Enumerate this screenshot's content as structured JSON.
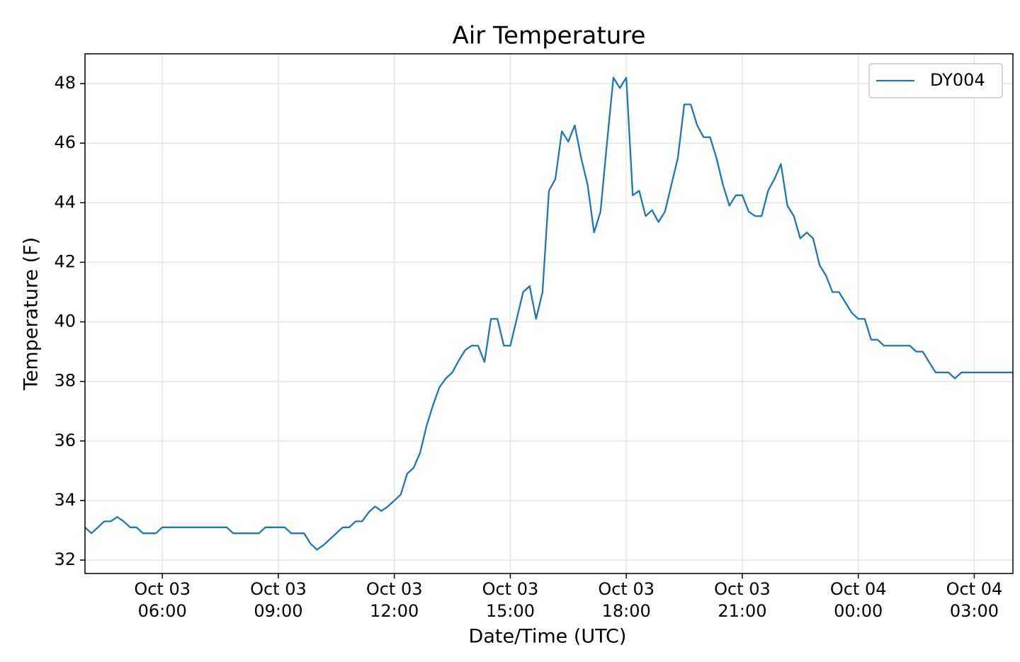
{
  "chart_data": {
    "type": "line",
    "title": "Air Temperature",
    "x_label": "Date/Time (UTC)",
    "y_label": "Temperature (F)",
    "x": [
      "Oct 03 04:00",
      "Oct 03 04:10",
      "Oct 03 04:20",
      "Oct 03 04:30",
      "Oct 03 04:40",
      "Oct 03 04:50",
      "Oct 03 05:00",
      "Oct 03 05:10",
      "Oct 03 05:20",
      "Oct 03 05:30",
      "Oct 03 05:40",
      "Oct 03 05:50",
      "Oct 03 06:00",
      "Oct 03 06:10",
      "Oct 03 06:20",
      "Oct 03 06:30",
      "Oct 03 06:40",
      "Oct 03 06:50",
      "Oct 03 07:00",
      "Oct 03 07:10",
      "Oct 03 07:20",
      "Oct 03 07:30",
      "Oct 03 07:40",
      "Oct 03 07:50",
      "Oct 03 08:00",
      "Oct 03 08:10",
      "Oct 03 08:20",
      "Oct 03 08:30",
      "Oct 03 08:40",
      "Oct 03 08:50",
      "Oct 03 09:00",
      "Oct 03 09:10",
      "Oct 03 09:20",
      "Oct 03 09:30",
      "Oct 03 09:40",
      "Oct 03 09:50",
      "Oct 03 10:00",
      "Oct 03 10:10",
      "Oct 03 10:20",
      "Oct 03 10:30",
      "Oct 03 10:40",
      "Oct 03 10:50",
      "Oct 03 11:00",
      "Oct 03 11:10",
      "Oct 03 11:20",
      "Oct 03 11:30",
      "Oct 03 11:40",
      "Oct 03 11:50",
      "Oct 03 12:00",
      "Oct 03 12:10",
      "Oct 03 12:20",
      "Oct 03 12:30",
      "Oct 03 12:40",
      "Oct 03 12:50",
      "Oct 03 13:00",
      "Oct 03 13:10",
      "Oct 03 13:20",
      "Oct 03 13:30",
      "Oct 03 13:40",
      "Oct 03 13:50",
      "Oct 03 14:00",
      "Oct 03 14:10",
      "Oct 03 14:20",
      "Oct 03 14:30",
      "Oct 03 14:40",
      "Oct 03 14:50",
      "Oct 03 15:00",
      "Oct 03 15:10",
      "Oct 03 15:20",
      "Oct 03 15:30",
      "Oct 03 15:40",
      "Oct 03 15:50",
      "Oct 03 16:00",
      "Oct 03 16:10",
      "Oct 03 16:20",
      "Oct 03 16:30",
      "Oct 03 16:40",
      "Oct 03 16:50",
      "Oct 03 17:00",
      "Oct 03 17:10",
      "Oct 03 17:20",
      "Oct 03 17:30",
      "Oct 03 17:40",
      "Oct 03 17:50",
      "Oct 03 18:00",
      "Oct 03 18:10",
      "Oct 03 18:20",
      "Oct 03 18:30",
      "Oct 03 18:40",
      "Oct 03 18:50",
      "Oct 03 19:00",
      "Oct 03 19:10",
      "Oct 03 19:20",
      "Oct 03 19:30",
      "Oct 03 19:40",
      "Oct 03 19:50",
      "Oct 03 20:00",
      "Oct 03 20:10",
      "Oct 03 20:20",
      "Oct 03 20:30",
      "Oct 03 20:40",
      "Oct 03 20:50",
      "Oct 03 21:00",
      "Oct 03 21:10",
      "Oct 03 21:20",
      "Oct 03 21:30",
      "Oct 03 21:40",
      "Oct 03 21:50",
      "Oct 03 22:00",
      "Oct 03 22:10",
      "Oct 03 22:20",
      "Oct 03 22:30",
      "Oct 03 22:40",
      "Oct 03 22:50",
      "Oct 03 23:00",
      "Oct 03 23:10",
      "Oct 03 23:20",
      "Oct 03 23:30",
      "Oct 03 23:40",
      "Oct 03 23:50",
      "Oct 04 00:00",
      "Oct 04 00:10",
      "Oct 04 00:20",
      "Oct 04 00:30",
      "Oct 04 00:40",
      "Oct 04 00:50",
      "Oct 04 01:00",
      "Oct 04 01:10",
      "Oct 04 01:20",
      "Oct 04 01:30",
      "Oct 04 01:40",
      "Oct 04 01:50",
      "Oct 04 02:00",
      "Oct 04 02:10",
      "Oct 04 02:20",
      "Oct 04 02:30",
      "Oct 04 02:40",
      "Oct 04 02:50",
      "Oct 04 03:00",
      "Oct 04 03:10",
      "Oct 04 03:20",
      "Oct 04 03:30",
      "Oct 04 03:40",
      "Oct 04 03:50",
      "Oct 04 04:00"
    ],
    "series": [
      {
        "name": "DY004",
        "color": "#1f77b4",
        "values": [
          33.1,
          32.9,
          33.1,
          33.3,
          33.3,
          33.45,
          33.3,
          33.1,
          33.1,
          32.9,
          32.9,
          32.9,
          33.1,
          33.1,
          33.1,
          33.1,
          33.1,
          33.1,
          33.1,
          33.1,
          33.1,
          33.1,
          33.1,
          32.9,
          32.9,
          32.9,
          32.9,
          32.9,
          33.1,
          33.1,
          33.1,
          33.1,
          32.9,
          32.9,
          32.9,
          32.55,
          32.35,
          32.5,
          32.7,
          32.9,
          33.1,
          33.1,
          33.3,
          33.3,
          33.6,
          33.8,
          33.65,
          33.8,
          34.0,
          34.2,
          34.9,
          35.1,
          35.6,
          36.5,
          37.2,
          37.8,
          38.1,
          38.3,
          38.7,
          39.05,
          39.2,
          39.2,
          38.65,
          40.1,
          40.1,
          39.2,
          39.2,
          40.1,
          41.0,
          41.2,
          40.1,
          41.0,
          44.4,
          44.8,
          46.4,
          46.05,
          46.6,
          45.5,
          44.6,
          43.0,
          43.7,
          46.0,
          48.2,
          47.85,
          48.2,
          44.25,
          44.4,
          43.55,
          43.75,
          43.35,
          43.7,
          44.6,
          45.5,
          47.3,
          47.3,
          46.6,
          46.2,
          46.2,
          45.5,
          44.6,
          43.9,
          44.25,
          44.25,
          43.7,
          43.55,
          43.55,
          44.4,
          44.8,
          45.3,
          43.9,
          43.55,
          42.8,
          43.0,
          42.8,
          41.9,
          41.55,
          41.0,
          41.0,
          40.65,
          40.3,
          40.1,
          40.1,
          39.4,
          39.4,
          39.2,
          39.2,
          39.2,
          39.2,
          39.2,
          39.0,
          39.0,
          38.65,
          38.3,
          38.3,
          38.3,
          38.1,
          38.3,
          38.3,
          38.3,
          38.3,
          38.3,
          38.3,
          38.3,
          38.3,
          38.3
        ]
      }
    ],
    "xlim": [
      "Oct 03 04:00",
      "Oct 04 04:00"
    ],
    "xticks": [
      "Oct 03 06:00",
      "Oct 03 09:00",
      "Oct 03 12:00",
      "Oct 03 15:00",
      "Oct 03 18:00",
      "Oct 03 21:00",
      "Oct 04 00:00",
      "Oct 04 03:00"
    ],
    "ylim": [
      31.55,
      49.0
    ],
    "yticks": [
      32,
      34,
      36,
      38,
      40,
      42,
      44,
      46,
      48
    ],
    "grid": true,
    "legend": "upper right"
  }
}
